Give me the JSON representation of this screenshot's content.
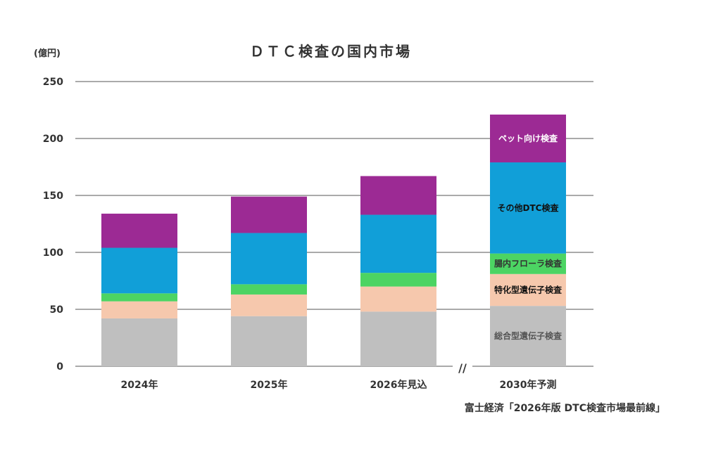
{
  "chart_data": {
    "type": "bar",
    "stacked": true,
    "title": "ＤＴＣ検査の国内市場",
    "ylabel": "(億円)",
    "xlabel": "",
    "ylim": [
      0,
      250
    ],
    "yticks": [
      "0",
      "50",
      "100",
      "150",
      "200",
      "250"
    ],
    "grid": true,
    "categories": [
      "2024年",
      "2025年",
      "2026年見込",
      "2030年予測"
    ],
    "axis_break_marker": "//",
    "series": [
      {
        "name": "総合型遺伝子検査",
        "color": "#bfbfbf",
        "label_color": "#555555",
        "values": [
          42,
          44,
          48,
          53
        ]
      },
      {
        "name": "特化型遺伝子検査",
        "color": "#f6c8ad",
        "label_color": "#111111",
        "values": [
          15,
          19,
          22,
          28
        ]
      },
      {
        "name": "腸内フローラ検査",
        "color": "#4cd463",
        "label_color": "#333333",
        "values": [
          7,
          9,
          12,
          18
        ]
      },
      {
        "name": "その他DTC検査",
        "color": "#119fd8",
        "label_color": "#111111",
        "values": [
          40,
          45,
          51,
          80
        ]
      },
      {
        "name": "ペット向け検査",
        "color": "#9c2a94",
        "label_color": "#ffffff",
        "values": [
          30,
          32,
          34,
          42
        ]
      }
    ],
    "source": "富士経済「2026年版 DTC検査市場最前線」"
  }
}
